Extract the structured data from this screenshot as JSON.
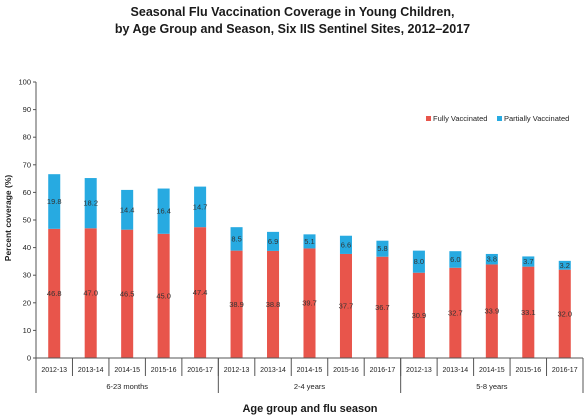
{
  "chart_data": {
    "type": "bar",
    "title_line1": "Seasonal Flu Vaccination Coverage in Young Children,",
    "title_line2": "by Age Group and Season, Six IIS Sentinel Sites, 2012–2017",
    "ylabel": "Percent coverage (%)",
    "xlabel": "Age group and flu season",
    "ylim": [
      0,
      100
    ],
    "yticks": [
      0,
      10,
      20,
      30,
      40,
      50,
      60,
      70,
      80,
      90,
      100
    ],
    "stacked": true,
    "legend_position": "top-right",
    "colors": {
      "fully": "#e8554b",
      "partially": "#27aae1"
    },
    "groups": [
      {
        "name": "6-23 months",
        "categories": [
          "2012-13",
          "2013-14",
          "2014-15",
          "2015-16",
          "2016-17"
        ]
      },
      {
        "name": "2-4 years",
        "categories": [
          "2012-13",
          "2013-14",
          "2014-15",
          "2015-16",
          "2016-17"
        ]
      },
      {
        "name": "5-8 years",
        "categories": [
          "2012-13",
          "2013-14",
          "2014-15",
          "2015-16",
          "2016-17"
        ]
      }
    ],
    "series": [
      {
        "name": "Fully Vaccinated",
        "values": [
          46.8,
          47.0,
          46.5,
          45.0,
          47.4,
          38.9,
          38.8,
          39.7,
          37.7,
          36.7,
          30.9,
          32.7,
          33.9,
          33.1,
          32.0
        ],
        "labels": [
          "46.8",
          "47.0",
          "46.5",
          "45.0",
          "47.4",
          "38.9",
          "38.8",
          "39.7",
          "37.7",
          "36.7",
          "30.9",
          "32.7",
          "33.9",
          "33.1",
          "32.0"
        ]
      },
      {
        "name": "Partially Vaccinated",
        "values": [
          19.8,
          18.2,
          14.4,
          16.4,
          14.7,
          8.5,
          6.9,
          5.1,
          6.6,
          5.8,
          8.0,
          6.0,
          3.8,
          3.7,
          3.2
        ],
        "labels": [
          "19.8",
          "18.2",
          "14.4",
          "16.4",
          "14.7",
          "8.5",
          "6.9",
          "5.1",
          "6.6",
          "5.8",
          "8.0",
          "6.0",
          "3.8",
          "3.7",
          "3.2"
        ]
      }
    ]
  }
}
